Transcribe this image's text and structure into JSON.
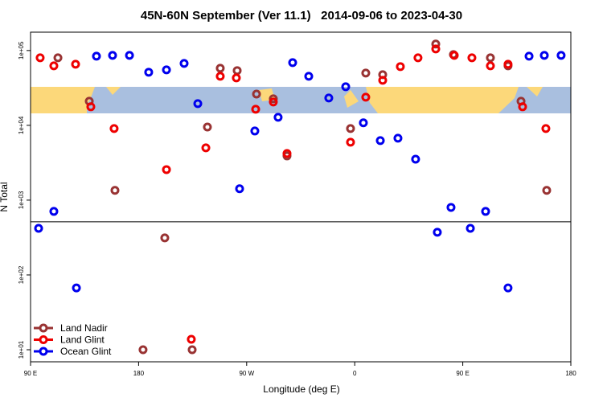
{
  "chart_data": {
    "type": "scatter",
    "title": "45N-60N September (Ver 11.1)   2014-09-06 to 2023-04-30",
    "x_label": "Longitude (deg E)",
    "y_label": "N Total",
    "xlim": [
      -270,
      180
    ],
    "xticks": [
      {
        "value": -270,
        "label": "90 E"
      },
      {
        "value": -180,
        "label": "180"
      },
      {
        "value": -90,
        "label": "90 W"
      },
      0,
      {
        "value": 90,
        "label": "90 E"
      },
      180
    ],
    "ylog": true,
    "ylim": [
      6.9,
      176000
    ],
    "yticks": [
      {
        "value": 10,
        "label": "1e+01"
      },
      {
        "value": 100,
        "label": "1e+02"
      },
      {
        "value": 1000,
        "label": "1e+03"
      },
      {
        "value": 10000,
        "label": "1e+04"
      },
      {
        "value": 100000,
        "label": "1e+05"
      }
    ],
    "reference_line": 513,
    "legend": "bottom-left",
    "series": [
      {
        "name": "Land Nadir",
        "color": "#993333",
        "x": [
          -247.2,
          -221.1,
          -199.7,
          -158.2,
          -122.7,
          -112.0,
          -97.9,
          -81.8,
          -67.8,
          -56.4,
          -3.5,
          9.2,
          23.3,
          67.5,
          82.2,
          113.0,
          127.7,
          138.5,
          159.9,
          -135.4,
          -176.3
        ],
        "values": [
          80000,
          21000,
          1350,
          313,
          9500,
          58000,
          53900,
          26200,
          22600,
          3900,
          9050,
          50000,
          47600,
          122000,
          88300,
          80000,
          62500,
          21000,
          1350,
          10,
          10
        ]
      },
      {
        "name": "Land Glint",
        "color": "#ee0000",
        "x": [
          -262.0,
          -250.6,
          -232.5,
          -219.8,
          -200.4,
          -156.8,
          -124.0,
          -112.0,
          -98.6,
          -82.5,
          -67.8,
          -56.4,
          -3.5,
          9.2,
          23.3,
          38.0,
          52.7,
          67.5,
          82.9,
          97.6,
          113.0,
          127.7,
          139.8,
          159.2,
          -136.1
        ],
        "values": [
          80000,
          62500,
          65600,
          17700,
          9050,
          2560,
          5000,
          45300,
          43100,
          16400,
          20500,
          4200,
          5950,
          23800,
          40000,
          61000,
          80000,
          105000,
          86200,
          80000,
          62500,
          65600,
          17700,
          9050,
          13.8
        ]
      },
      {
        "name": "Ocean Glint",
        "color": "#0000ee",
        "x": [
          -263.3,
          -250.6,
          -231.8,
          -215.1,
          -201.7,
          -187.6,
          -171.6,
          -156.8,
          -142.1,
          -130.7,
          -95.9,
          -83.2,
          -63.8,
          -51.7,
          -38.3,
          -21.6,
          -7.5,
          7.2,
          21.3,
          36.0,
          50.7,
          68.8,
          80.2,
          96.3,
          109.0,
          127.7,
          145.2,
          157.9,
          171.9
        ],
        "values": [
          420,
          707,
          67,
          84100,
          86200,
          86200,
          51300,
          55200,
          67300,
          19500,
          1420,
          8400,
          12800,
          69000,
          45300,
          23200,
          32800,
          10800,
          6250,
          6730,
          3530,
          372,
          800,
          420,
          707,
          67,
          84100,
          86200,
          86200
        ]
      }
    ]
  }
}
